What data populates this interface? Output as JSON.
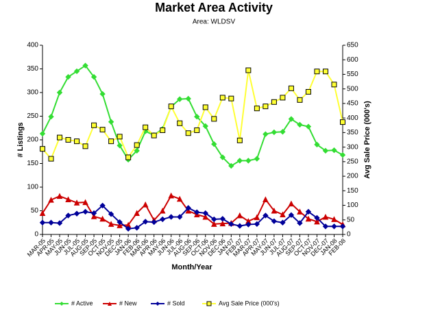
{
  "chart_data": {
    "type": "line",
    "title": "Market Area Activity",
    "subtitle": "Area: WLDSV",
    "x_label": "Month/Year",
    "y_label": "# Listings",
    "y2_label": "Avg Sale Price (000's)",
    "categories": [
      "MAR-05",
      "APR-05",
      "MAY-05",
      "JUN-05",
      "JUL-05",
      "AUG-05",
      "SEP-05",
      "OCT-05",
      "NOV-05",
      "DEC-05",
      "JAN-06",
      "FEB-06",
      "MAR-06",
      "APR-06",
      "MAY-06",
      "JUN-06",
      "JUL-06",
      "AUG-06",
      "SEP-06",
      "OCT-06",
      "NOV-06",
      "DEC-06",
      "JAN-07",
      "FEB-07",
      "MAR-07",
      "APR-07",
      "MAY-07",
      "JUN-07",
      "JUL-07",
      "AUG-07",
      "SEP-07",
      "OCT-07",
      "NOV-07",
      "DEC-07",
      "JAN-08",
      "FEB-08"
    ],
    "series": [
      {
        "name": "# Active",
        "color": "#33dd33",
        "marker": "diamond",
        "values": [
          213,
          249,
          300,
          333,
          345,
          357,
          333,
          297,
          238,
          188,
          158,
          177,
          218,
          210,
          223,
          270,
          286,
          287,
          249,
          229,
          191,
          163,
          145,
          156,
          156,
          160,
          212,
          216,
          217,
          244,
          232,
          228,
          190,
          177,
          178,
          168
        ]
      },
      {
        "name": "# New",
        "color": "#cc0000",
        "marker": "triangle",
        "values": [
          45,
          73,
          81,
          74,
          67,
          68,
          38,
          33,
          22,
          19,
          20,
          45,
          63,
          30,
          50,
          82,
          75,
          50,
          42,
          37,
          22,
          23,
          24,
          40,
          28,
          36,
          74,
          50,
          42,
          65,
          48,
          33,
          27,
          37,
          32,
          21
        ]
      },
      {
        "name": "# Sold",
        "color": "#000099",
        "marker": "diamond",
        "values": [
          25,
          25,
          24,
          40,
          44,
          48,
          45,
          61,
          43,
          26,
          12,
          14,
          27,
          26,
          32,
          37,
          37,
          56,
          47,
          45,
          32,
          33,
          22,
          18,
          21,
          22,
          40,
          28,
          25,
          41,
          24,
          48,
          35,
          17,
          17,
          17
        ]
      },
      {
        "name": "Avg Sale Price (000's)",
        "color": "#ffff33",
        "marker": "square",
        "axis": "y2",
        "values": [
          294,
          260,
          333,
          325,
          320,
          303,
          375,
          360,
          320,
          336,
          265,
          307,
          368,
          340,
          358,
          440,
          382,
          348,
          358,
          437,
          397,
          470,
          467,
          323,
          564,
          433,
          440,
          455,
          470,
          502,
          462,
          490,
          560,
          560,
          515,
          386
        ]
      }
    ],
    "ylim": [
      0,
      400
    ],
    "yticks": [
      0,
      50,
      100,
      150,
      200,
      250,
      300,
      350,
      400
    ],
    "y2lim": [
      0,
      650
    ],
    "y2ticks": [
      0,
      50,
      100,
      150,
      200,
      250,
      300,
      350,
      400,
      450,
      500,
      550,
      600,
      650
    ],
    "grid": false,
    "legend": "bottom"
  }
}
